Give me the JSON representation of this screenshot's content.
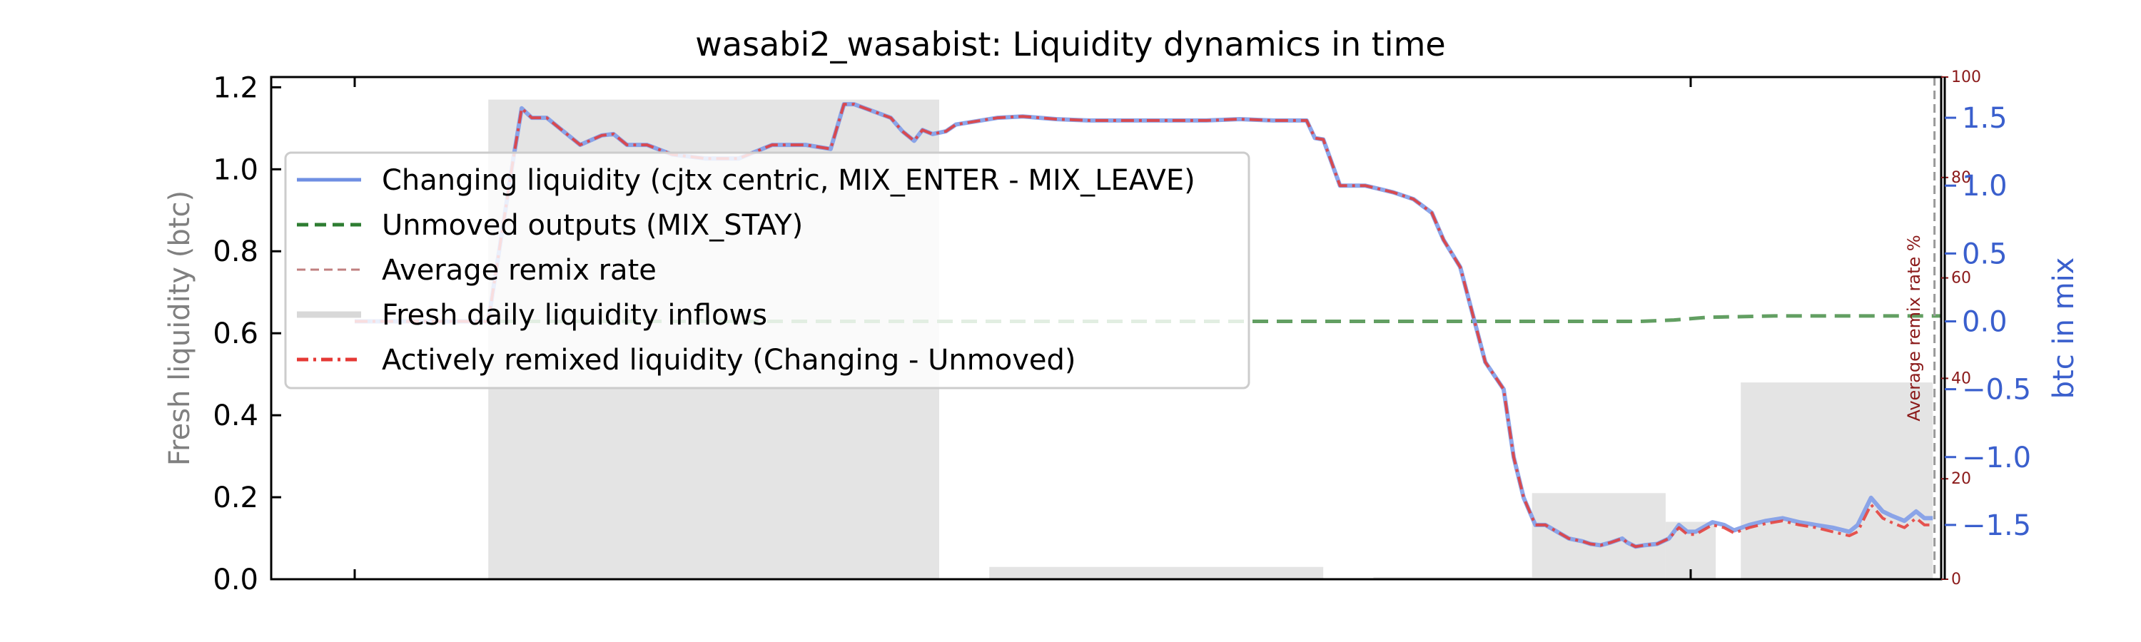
{
  "chart_data": {
    "type": "line",
    "title": "wasabi2_wasabist: Liquidity dynamics in time",
    "x": {
      "range": [
        0,
        100
      ],
      "ticks": [
        5,
        85
      ],
      "tick_labels": [
        "",
        ""
      ]
    },
    "y_left": {
      "label": "Fresh liquidity (btc)",
      "range": [
        0,
        1.225
      ],
      "ticks": [
        0.0,
        0.2,
        0.4,
        0.6,
        0.8,
        1.0,
        1.2
      ],
      "tick_labels": [
        "0.0",
        "0.2",
        "0.4",
        "0.6",
        "0.8",
        "1.0",
        "1.2"
      ],
      "color": "#808080"
    },
    "y_remix": {
      "label": "Average remix rate %",
      "range": [
        0,
        100
      ],
      "ticks": [
        0,
        20,
        40,
        60,
        80,
        100
      ],
      "tick_labels": [
        "0",
        "20",
        "40",
        "60",
        "80",
        "100"
      ],
      "color": "#8b1a1a"
    },
    "y_right": {
      "label": "btc in mix",
      "range": [
        -1.9,
        1.8
      ],
      "ticks": [
        -1.5,
        -1.0,
        -0.5,
        0.0,
        0.5,
        1.0,
        1.5
      ],
      "tick_labels": [
        "−1.5",
        "−1.0",
        "−0.5",
        "0.0",
        "0.5",
        "1.0",
        "1.5"
      ],
      "color": "#3a5fcd"
    },
    "legend": {
      "position": "upper-left",
      "entries": [
        {
          "label": "Changing liquidity (cjtx centric, MIX_ENTER - MIX_LEAVE)",
          "color": "#6f8fe3",
          "style": "solid"
        },
        {
          "label": "Unmoved outputs (MIX_STAY)",
          "color": "#2e7d32",
          "style": "dashed"
        },
        {
          "label": "Average remix rate",
          "color": "#c08080",
          "style": "dashed-thin"
        },
        {
          "label": "Fresh daily liquidity inflows",
          "color": "#d8d8d8",
          "style": "solid-thick"
        },
        {
          "label": "Actively remixed liquidity (Changing - Unmoved)",
          "color": "#e53935",
          "style": "dashdot"
        }
      ]
    },
    "series": [
      {
        "name": "Fresh daily liquidity inflows",
        "type": "bar",
        "axis": "y_left",
        "color": "#e4e4e4",
        "bars": [
          {
            "x0": 13,
            "x1": 40,
            "value": 1.17
          },
          {
            "x0": 43,
            "x1": 63,
            "value": 0.03
          },
          {
            "x0": 66,
            "x1": 75.5,
            "value": 0.005
          },
          {
            "x0": 75.5,
            "x1": 83.5,
            "value": 0.21
          },
          {
            "x0": 83.5,
            "x1": 86.5,
            "value": 0.14
          },
          {
            "x0": 88,
            "x1": 99.5,
            "value": 0.48
          }
        ]
      },
      {
        "name": "Unmoved outputs (MIX_STAY)",
        "type": "line",
        "axis": "y_right",
        "color": "#5a9a5a",
        "x": [
          5,
          20,
          40,
          60,
          75,
          82,
          84,
          86,
          90,
          100
        ],
        "y": [
          0.0,
          0.0,
          0.0,
          0.0,
          0.0,
          0.0,
          0.01,
          0.03,
          0.04,
          0.04
        ]
      },
      {
        "name": "Changing liquidity (cjtx centric, MIX_ENTER - MIX_LEAVE)",
        "type": "line",
        "axis": "y_right",
        "color": "#7f9ce8",
        "x": [
          5,
          13,
          14.5,
          15,
          15.6,
          16.5,
          17.5,
          18.5,
          19.8,
          20.5,
          21.3,
          22.5,
          24,
          26,
          28,
          30,
          32,
          33.5,
          34.3,
          34.9,
          36,
          37.1,
          37.8,
          38.5,
          39,
          39.6,
          40.4,
          41,
          42,
          43.5,
          45,
          47,
          49,
          52,
          54,
          56,
          58,
          60,
          61.2,
          62,
          62.5,
          63,
          64,
          65.5,
          66.2,
          67.2,
          68.4,
          69.5,
          70.2,
          71.2,
          72.7,
          73.8,
          74.4,
          75,
          75.7,
          76.3,
          77,
          77.7,
          78.5,
          79,
          79.6,
          80.2,
          80.9,
          81.2,
          81.7,
          82.2,
          83,
          83.7,
          84.3,
          84.8,
          85.3,
          86.3,
          87,
          87.6,
          88.5,
          89.5,
          90.5,
          91.5,
          92.5,
          93.5,
          94.5,
          95,
          95.8,
          96.5,
          97,
          97.8,
          98.5,
          99,
          99.5
        ],
        "y": [
          0.0,
          0.0,
          1.2,
          1.57,
          1.5,
          1.5,
          1.4,
          1.3,
          1.37,
          1.38,
          1.3,
          1.3,
          1.23,
          1.2,
          1.2,
          1.3,
          1.3,
          1.27,
          1.6,
          1.6,
          1.55,
          1.5,
          1.4,
          1.33,
          1.41,
          1.38,
          1.4,
          1.45,
          1.47,
          1.5,
          1.51,
          1.49,
          1.48,
          1.48,
          1.48,
          1.48,
          1.49,
          1.48,
          1.48,
          1.48,
          1.35,
          1.34,
          1.0,
          1.0,
          0.98,
          0.95,
          0.9,
          0.8,
          0.6,
          0.4,
          -0.3,
          -0.5,
          -1.0,
          -1.3,
          -1.5,
          -1.5,
          -1.55,
          -1.6,
          -1.62,
          -1.64,
          -1.65,
          -1.63,
          -1.6,
          -1.63,
          -1.66,
          -1.65,
          -1.64,
          -1.6,
          -1.5,
          -1.55,
          -1.55,
          -1.48,
          -1.5,
          -1.54,
          -1.5,
          -1.47,
          -1.45,
          -1.48,
          -1.5,
          -1.52,
          -1.55,
          -1.5,
          -1.3,
          -1.4,
          -1.43,
          -1.47,
          -1.4,
          -1.45,
          -1.45
        ]
      },
      {
        "name": "Actively remixed liquidity (Changing - Unmoved)",
        "type": "line",
        "axis": "y_right",
        "color": "#e53935",
        "x": [
          5,
          13,
          14.5,
          15,
          15.6,
          16.5,
          17.5,
          18.5,
          19.8,
          20.5,
          21.3,
          22.5,
          24,
          26,
          28,
          30,
          32,
          33.5,
          34.3,
          34.9,
          36,
          37.1,
          37.8,
          38.5,
          39,
          39.6,
          40.4,
          41,
          42,
          43.5,
          45,
          47,
          49,
          52,
          54,
          56,
          58,
          60,
          61.2,
          62,
          62.5,
          63,
          64,
          65.5,
          66.2,
          67.2,
          68.4,
          69.5,
          70.2,
          71.2,
          72.7,
          73.8,
          74.4,
          75,
          75.7,
          76.3,
          77,
          77.7,
          78.5,
          79,
          79.6,
          80.2,
          80.9,
          81.2,
          81.7,
          82.2,
          83,
          83.7,
          84.3,
          84.8,
          85.3,
          86.3,
          87,
          87.6,
          88.5,
          89.5,
          90.5,
          91.5,
          92.5,
          93.5,
          94.5,
          95,
          95.8,
          96.5,
          97,
          97.8,
          98.5,
          99,
          99.5
        ],
        "y": [
          0.0,
          0.0,
          1.2,
          1.57,
          1.5,
          1.5,
          1.4,
          1.3,
          1.37,
          1.38,
          1.3,
          1.3,
          1.23,
          1.2,
          1.2,
          1.3,
          1.3,
          1.27,
          1.6,
          1.6,
          1.55,
          1.5,
          1.4,
          1.33,
          1.41,
          1.38,
          1.4,
          1.45,
          1.47,
          1.5,
          1.51,
          1.49,
          1.48,
          1.48,
          1.48,
          1.48,
          1.49,
          1.48,
          1.48,
          1.48,
          1.35,
          1.34,
          1.0,
          1.0,
          0.98,
          0.95,
          0.9,
          0.8,
          0.6,
          0.4,
          -0.3,
          -0.5,
          -1.0,
          -1.3,
          -1.5,
          -1.5,
          -1.55,
          -1.6,
          -1.62,
          -1.64,
          -1.65,
          -1.63,
          -1.6,
          -1.63,
          -1.66,
          -1.65,
          -1.64,
          -1.6,
          -1.52,
          -1.57,
          -1.57,
          -1.5,
          -1.52,
          -1.56,
          -1.52,
          -1.49,
          -1.47,
          -1.5,
          -1.52,
          -1.55,
          -1.58,
          -1.55,
          -1.35,
          -1.45,
          -1.48,
          -1.52,
          -1.45,
          -1.5,
          -1.5
        ]
      }
    ],
    "markers": {
      "vertical_dashed_line_x": 99.6
    }
  }
}
